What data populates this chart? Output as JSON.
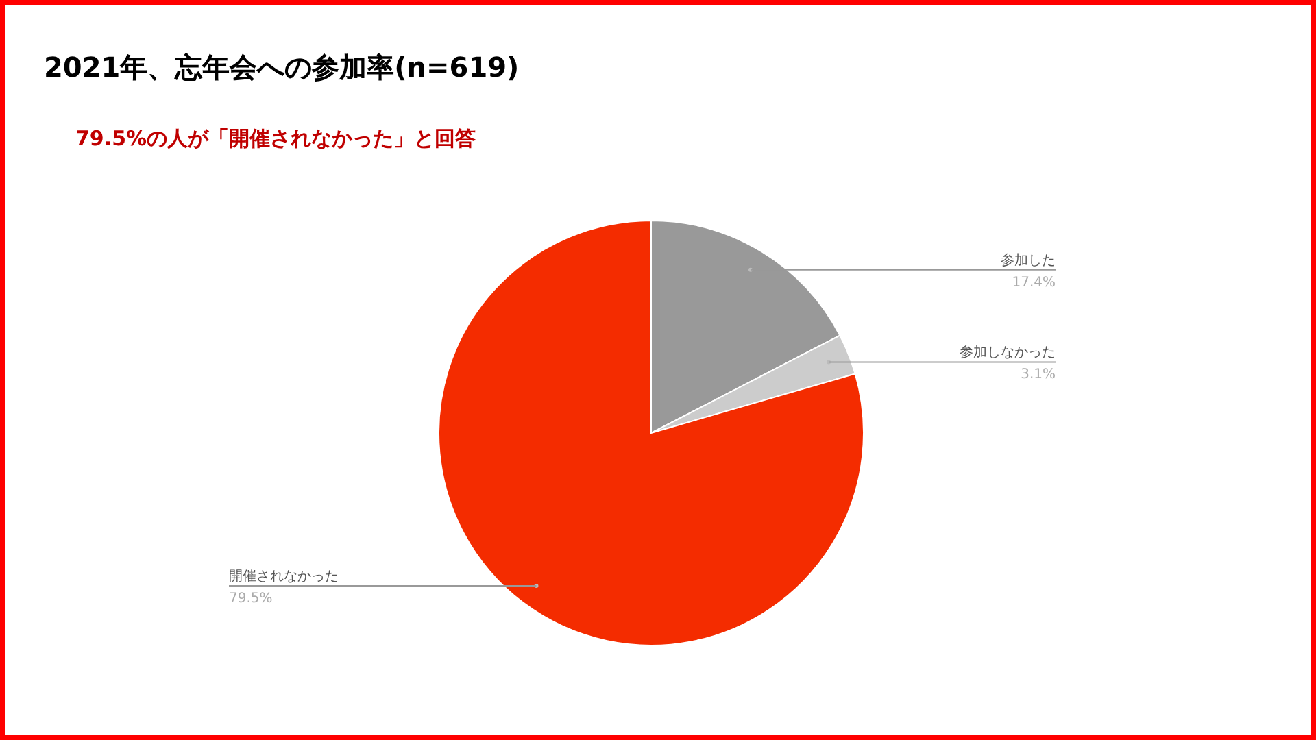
{
  "chart_data": {
    "type": "pie",
    "title": "2021年、忘年会への参加率(n=619)",
    "subtitle": "79.5%の人が「開催されなかった」と回答",
    "categories": [
      "参加した",
      "参加しなかった",
      "開催されなかった"
    ],
    "values": [
      17.4,
      3.1,
      79.5
    ],
    "colors": [
      "#999999",
      "#cccccc",
      "#f42c00"
    ],
    "value_labels": [
      "17.4%",
      "3.1%",
      "79.5%"
    ]
  }
}
